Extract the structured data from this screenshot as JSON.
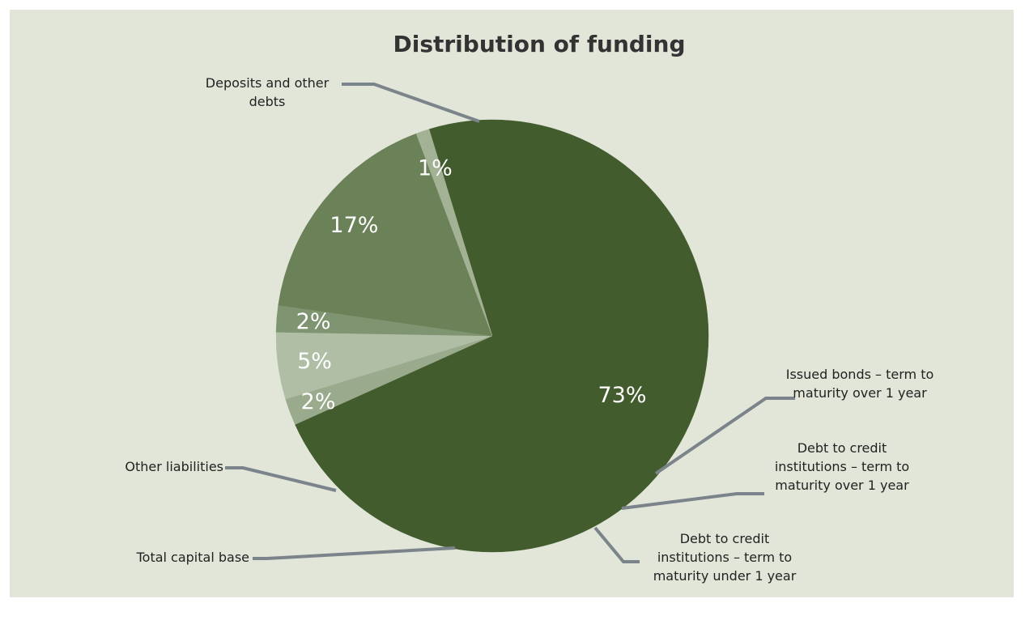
{
  "chart_data": {
    "type": "pie",
    "title": "Distribution of funding",
    "slices": [
      {
        "label": "Deposits and other debts",
        "value": 73,
        "value_label": "73%",
        "color": "#435c2e"
      },
      {
        "label": "Issued bonds – term to maturity over 1 year",
        "value": 2,
        "value_label": "2%",
        "color": "#9aaa8c"
      },
      {
        "label": "Debt to credit institutions – term to maturity over 1 year",
        "value": 5,
        "value_label": "5%",
        "color": "#b1bea6"
      },
      {
        "label": "Debt to credit institutions – term to maturity under 1 year",
        "value": 2,
        "value_label": "2%",
        "color": "#7f9470"
      },
      {
        "label": "Total capital base",
        "value": 17,
        "value_label": "17%",
        "color": "#6b8259"
      },
      {
        "label": "Other liabilities",
        "value": 1,
        "value_label": "1%",
        "color": "#a3b195"
      }
    ]
  },
  "colors": {
    "background": "#e2e6d9",
    "leader_line": "#7b848a"
  }
}
